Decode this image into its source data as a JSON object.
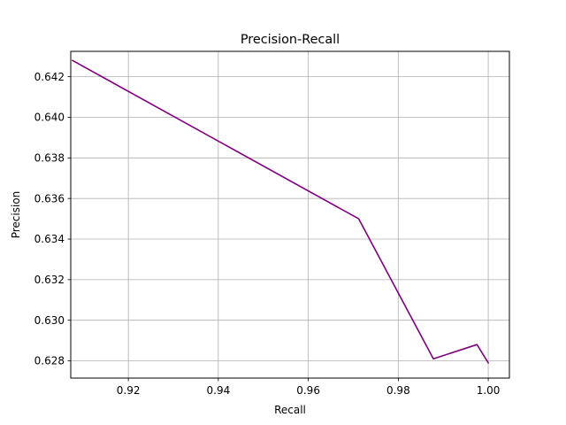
{
  "chart_data": {
    "type": "line",
    "title": "Precision-Recall",
    "xlabel": "Recall",
    "ylabel": "Precision",
    "xlim": [
      0.9072,
      1.0047
    ],
    "ylim": [
      0.62715,
      0.64325
    ],
    "xticks": [
      0.92,
      0.94,
      0.96,
      0.98,
      1.0
    ],
    "xtick_labels": [
      "0.92",
      "0.94",
      "0.96",
      "0.98",
      "1.00"
    ],
    "yticks": [
      0.628,
      0.63,
      0.632,
      0.634,
      0.636,
      0.638,
      0.64,
      0.642
    ],
    "ytick_labels": [
      "0.628",
      "0.630",
      "0.632",
      "0.634",
      "0.636",
      "0.638",
      "0.640",
      "0.642"
    ],
    "grid": true,
    "series": [
      {
        "color": "#800080",
        "x": [
          0.9076,
          0.9712,
          0.9878,
          0.9975,
          1.0
        ],
        "y": [
          0.6428,
          0.635,
          0.6281,
          0.6288,
          0.6279
        ]
      }
    ]
  }
}
